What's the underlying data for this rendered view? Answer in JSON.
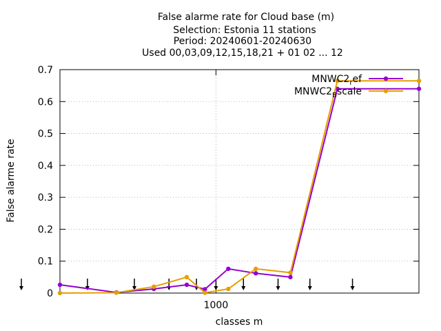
{
  "chart_data": {
    "type": "line",
    "title_lines": [
      "False alarme rate  for Cloud base (m)",
      "Selection: Estonia      11 stations",
      "Period: 20240601-20240630",
      "Used 00,03,09,12,15,18,21 + 01 02 ... 12"
    ],
    "xlabel": "classes m",
    "ylabel": "False alarme rate",
    "x_scale": "log",
    "xlim": [
      100,
      20000
    ],
    "ylim": [
      0,
      0.7
    ],
    "x_ticks": [
      1000
    ],
    "x_tick_labels": [
      "1000"
    ],
    "y_ticks": [
      0,
      0.1,
      0.2,
      0.3,
      0.4,
      0.5,
      0.6,
      0.7
    ],
    "y_tick_labels": [
      "0",
      "0.1",
      "0.2",
      "0.3",
      "0.4",
      "0.5",
      "0.6",
      "0.7"
    ],
    "grid": true,
    "legend_position": "top-right",
    "marker_xs": [
      100,
      150,
      300,
      500,
      750,
      1000,
      1500,
      2500,
      4000,
      7500
    ],
    "series": [
      {
        "name_base": "MNWC2",
        "name_sub": "r",
        "name_rest": "ef",
        "color": "#9400d3",
        "x": [
          100,
          230,
          400,
          650,
          850,
          1200,
          1800,
          3000,
          6000,
          20000
        ],
        "y": [
          0.026,
          0.002,
          0.013,
          0.026,
          0.012,
          0.076,
          0.062,
          0.05,
          0.64,
          0.64
        ]
      },
      {
        "name_base": "MNWC2",
        "name_sub": "B",
        "name_rest": "scale",
        "color": "#e69f00",
        "x": [
          100,
          230,
          400,
          650,
          850,
          1200,
          1800,
          3000,
          6000,
          20000
        ],
        "y": [
          0.0,
          0.001,
          0.02,
          0.05,
          0.001,
          0.013,
          0.076,
          0.064,
          0.665,
          0.665
        ]
      }
    ]
  }
}
